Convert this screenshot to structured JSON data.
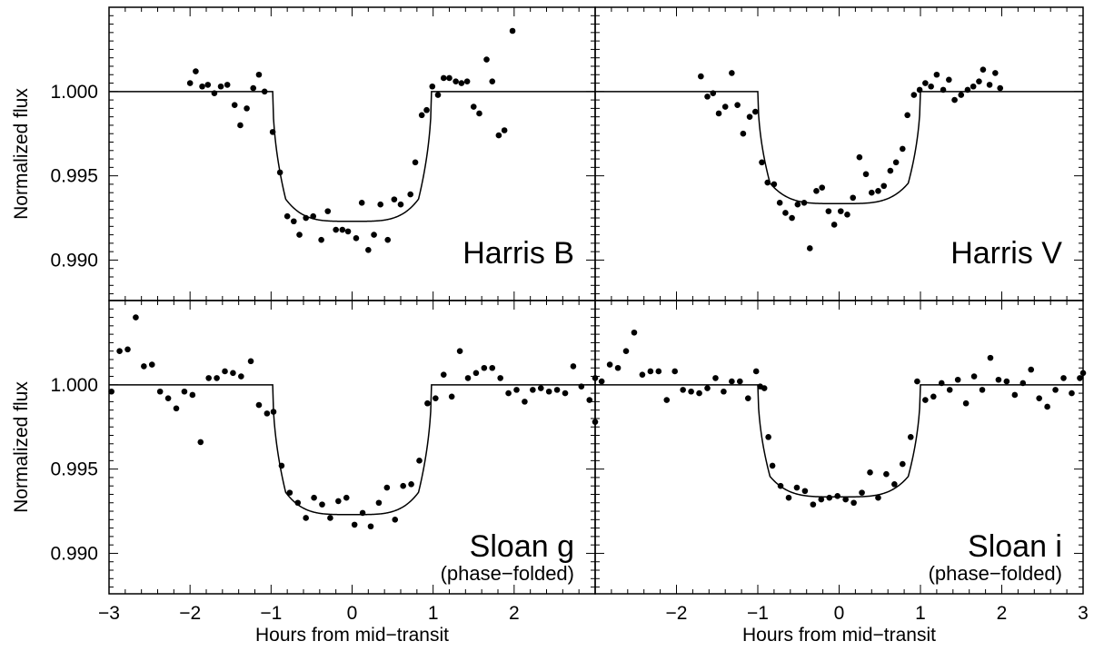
{
  "chart_data": [
    {
      "type": "scatter",
      "band_label": "Harris B",
      "note": "",
      "xlabel": "",
      "ylabel": "Normalized flux",
      "xlim": [
        -3,
        3
      ],
      "ylim": [
        0.9876,
        1.005
      ],
      "xticks": [],
      "yticks": [
        "1.000",
        "0.995",
        "0.990"
      ],
      "model": {
        "baseline": 1.0,
        "depth_center": 0.9923,
        "t_full": 0.82,
        "t_total": 0.98
      },
      "points": [
        [
          -2.0,
          1.0005
        ],
        [
          -1.93,
          1.0012
        ],
        [
          -1.85,
          1.0003
        ],
        [
          -1.78,
          1.0004
        ],
        [
          -1.7,
          0.9999
        ],
        [
          -1.62,
          1.0003
        ],
        [
          -1.54,
          1.0004
        ],
        [
          -1.45,
          0.9992
        ],
        [
          -1.38,
          0.998
        ],
        [
          -1.3,
          0.999
        ],
        [
          -1.22,
          1.0002
        ],
        [
          -1.15,
          1.001
        ],
        [
          -1.08,
          1.0
        ],
        [
          -0.98,
          0.9976
        ],
        [
          -0.89,
          0.9952
        ],
        [
          -0.8,
          0.9926
        ],
        [
          -0.72,
          0.9923
        ],
        [
          -0.65,
          0.9915
        ],
        [
          -0.57,
          0.9925
        ],
        [
          -0.48,
          0.9926
        ],
        [
          -0.38,
          0.9912
        ],
        [
          -0.3,
          0.9929
        ],
        [
          -0.2,
          0.9918
        ],
        [
          -0.12,
          0.9918
        ],
        [
          -0.05,
          0.9917
        ],
        [
          0.05,
          0.9913
        ],
        [
          0.12,
          0.9934
        ],
        [
          0.2,
          0.9906
        ],
        [
          0.27,
          0.9915
        ],
        [
          0.35,
          0.9933
        ],
        [
          0.44,
          0.9912
        ],
        [
          0.52,
          0.9936
        ],
        [
          0.6,
          0.9933
        ],
        [
          0.72,
          0.9939
        ],
        [
          0.78,
          0.9958
        ],
        [
          0.86,
          0.9986
        ],
        [
          0.92,
          0.9989
        ],
        [
          0.99,
          1.0003
        ],
        [
          1.06,
          0.9998
        ],
        [
          1.13,
          1.0008
        ],
        [
          1.2,
          1.0008
        ],
        [
          1.28,
          1.0006
        ],
        [
          1.35,
          1.0005
        ],
        [
          1.42,
          1.0006
        ],
        [
          1.5,
          0.9991
        ],
        [
          1.57,
          0.9987
        ],
        [
          1.66,
          1.0019
        ],
        [
          1.73,
          1.0006
        ],
        [
          1.81,
          0.9974
        ],
        [
          1.88,
          0.9977
        ],
        [
          1.98,
          1.0036
        ]
      ]
    },
    {
      "type": "scatter",
      "band_label": "Harris V",
      "note": "",
      "xlabel": "",
      "ylabel": "",
      "xlim": [
        -3,
        3
      ],
      "ylim": [
        0.9876,
        1.005
      ],
      "xticks": [],
      "yticks": [],
      "model": {
        "baseline": 1.0,
        "depth_center": 0.99335,
        "t_full": 0.85,
        "t_total": 1.0
      },
      "points": [
        [
          -1.7,
          1.0009
        ],
        [
          -1.62,
          0.9997
        ],
        [
          -1.55,
          0.9999
        ],
        [
          -1.48,
          0.9987
        ],
        [
          -1.4,
          0.9991
        ],
        [
          -1.32,
          1.0011
        ],
        [
          -1.25,
          0.9992
        ],
        [
          -1.18,
          0.9975
        ],
        [
          -1.1,
          0.9985
        ],
        [
          -1.03,
          0.9988
        ],
        [
          -0.95,
          0.9958
        ],
        [
          -0.88,
          0.9946
        ],
        [
          -0.8,
          0.9945
        ],
        [
          -0.73,
          0.9934
        ],
        [
          -0.66,
          0.9928
        ],
        [
          -0.58,
          0.9925
        ],
        [
          -0.51,
          0.9933
        ],
        [
          -0.43,
          0.9934
        ],
        [
          -0.36,
          0.9907
        ],
        [
          -0.28,
          0.9941
        ],
        [
          -0.21,
          0.9943
        ],
        [
          -0.13,
          0.9929
        ],
        [
          -0.06,
          0.9921
        ],
        [
          0.02,
          0.9929
        ],
        [
          0.1,
          0.9927
        ],
        [
          0.17,
          0.9937
        ],
        [
          0.25,
          0.9961
        ],
        [
          0.33,
          0.9951
        ],
        [
          0.4,
          0.994
        ],
        [
          0.48,
          0.9941
        ],
        [
          0.55,
          0.9944
        ],
        [
          0.63,
          0.9953
        ],
        [
          0.7,
          0.9958
        ],
        [
          0.78,
          0.9966
        ],
        [
          0.84,
          0.9986
        ],
        [
          0.92,
          0.9998
        ],
        [
          0.99,
          1.0001
        ],
        [
          1.06,
          1.0005
        ],
        [
          1.13,
          1.0003
        ],
        [
          1.2,
          1.001
        ],
        [
          1.28,
          1.0001
        ],
        [
          1.35,
          1.0007
        ],
        [
          1.42,
          0.9995
        ],
        [
          1.5,
          0.9998
        ],
        [
          1.58,
          1.0001
        ],
        [
          1.65,
          1.0003
        ],
        [
          1.72,
          1.0006
        ],
        [
          1.77,
          1.0013
        ],
        [
          1.85,
          1.0004
        ],
        [
          1.92,
          1.0011
        ],
        [
          1.98,
          1.0002
        ]
      ]
    },
    {
      "type": "scatter",
      "band_label": "Sloan g",
      "note": "(phase−folded)",
      "xlabel": "Hours from mid−transit",
      "ylabel": "Normalized flux",
      "xlim": [
        -3,
        3
      ],
      "ylim": [
        0.9876,
        1.005
      ],
      "xticks": [
        "−3",
        "−2",
        "−1",
        "0",
        "1",
        "2"
      ],
      "yticks": [
        "1.000",
        "0.995",
        "0.990"
      ],
      "model": {
        "baseline": 1.0,
        "depth_center": 0.9923,
        "t_full": 0.82,
        "t_total": 0.98
      },
      "points": [
        [
          -2.97,
          0.9996
        ],
        [
          -2.87,
          1.002
        ],
        [
          -2.77,
          1.0021
        ],
        [
          -2.67,
          1.004
        ],
        [
          -2.57,
          1.0011
        ],
        [
          -2.47,
          1.0012
        ],
        [
          -2.37,
          0.9996
        ],
        [
          -2.27,
          0.9992
        ],
        [
          -2.17,
          0.9986
        ],
        [
          -2.07,
          0.9996
        ],
        [
          -1.97,
          0.9994
        ],
        [
          -1.87,
          0.9966
        ],
        [
          -1.77,
          1.0004
        ],
        [
          -1.67,
          1.0004
        ],
        [
          -1.57,
          1.0008
        ],
        [
          -1.47,
          1.0007
        ],
        [
          -1.37,
          1.0005
        ],
        [
          -1.25,
          1.0014
        ],
        [
          -1.15,
          0.9988
        ],
        [
          -1.05,
          0.9983
        ],
        [
          -0.97,
          0.9984
        ],
        [
          -0.87,
          0.9952
        ],
        [
          -0.77,
          0.9936
        ],
        [
          -0.67,
          0.993
        ],
        [
          -0.57,
          0.9921
        ],
        [
          -0.47,
          0.9933
        ],
        [
          -0.37,
          0.9929
        ],
        [
          -0.27,
          0.9921
        ],
        [
          -0.17,
          0.9931
        ],
        [
          -0.07,
          0.9933
        ],
        [
          0.03,
          0.9917
        ],
        [
          0.13,
          0.9924
        ],
        [
          0.23,
          0.9916
        ],
        [
          0.33,
          0.993
        ],
        [
          0.43,
          0.9939
        ],
        [
          0.53,
          0.992
        ],
        [
          0.63,
          0.994
        ],
        [
          0.73,
          0.9941
        ],
        [
          0.83,
          0.9955
        ],
        [
          0.93,
          0.9989
        ],
        [
          1.03,
          0.9992
        ],
        [
          1.13,
          1.0006
        ],
        [
          1.23,
          0.9993
        ],
        [
          1.33,
          1.002
        ],
        [
          1.43,
          1.0004
        ],
        [
          1.53,
          1.0007
        ],
        [
          1.63,
          1.001
        ],
        [
          1.73,
          1.001
        ],
        [
          1.83,
          1.0004
        ],
        [
          1.93,
          0.9995
        ],
        [
          2.03,
          0.9997
        ],
        [
          2.13,
          0.999
        ],
        [
          2.23,
          0.9997
        ],
        [
          2.33,
          0.9998
        ],
        [
          2.43,
          0.9996
        ],
        [
          2.53,
          0.9997
        ],
        [
          2.63,
          0.9995
        ],
        [
          2.73,
          1.0011
        ],
        [
          2.83,
          0.9999
        ],
        [
          2.93,
          0.9991
        ],
        [
          3.03,
          0.9978
        ]
      ]
    },
    {
      "type": "scatter",
      "band_label": "Sloan i",
      "note": "(phase−folded)",
      "xlabel": "Hours from mid−transit",
      "ylabel": "",
      "xlim": [
        -3,
        3
      ],
      "ylim": [
        0.9876,
        1.005
      ],
      "xticks": [
        "−2",
        "−1",
        "0",
        "1",
        "2",
        "3"
      ],
      "yticks": [],
      "model": {
        "baseline": 1.0,
        "depth_center": 0.99335,
        "t_full": 0.85,
        "t_total": 1.0
      },
      "points": [
        [
          -3.0,
          1.0004
        ],
        [
          -2.92,
          1.0002
        ],
        [
          -2.82,
          1.0012
        ],
        [
          -2.72,
          1.001
        ],
        [
          -2.62,
          1.002
        ],
        [
          -2.52,
          1.0031
        ],
        [
          -2.42,
          1.0006
        ],
        [
          -2.32,
          1.0008
        ],
        [
          -2.22,
          1.0008
        ],
        [
          -2.12,
          0.9991
        ],
        [
          -2.02,
          1.0008
        ],
        [
          -1.92,
          0.9997
        ],
        [
          -1.82,
          0.9996
        ],
        [
          -1.72,
          0.9995
        ],
        [
          -1.62,
          0.9998
        ],
        [
          -1.52,
          1.0004
        ],
        [
          -1.42,
          0.9996
        ],
        [
          -1.32,
          1.0002
        ],
        [
          -1.22,
          1.0002
        ],
        [
          -1.12,
          0.9992
        ],
        [
          -1.02,
          1.0008
        ],
        [
          -0.97,
          0.9999
        ],
        [
          -0.92,
          0.9998
        ],
        [
          -0.87,
          0.9969
        ],
        [
          -0.82,
          0.9952
        ],
        [
          -0.72,
          0.994
        ],
        [
          -0.62,
          0.9933
        ],
        [
          -0.52,
          0.9939
        ],
        [
          -0.42,
          0.9937
        ],
        [
          -0.32,
          0.9929
        ],
        [
          -0.22,
          0.9932
        ],
        [
          -0.12,
          0.9933
        ],
        [
          -0.02,
          0.9934
        ],
        [
          0.08,
          0.9932
        ],
        [
          0.18,
          0.993
        ],
        [
          0.28,
          0.9936
        ],
        [
          0.38,
          0.9948
        ],
        [
          0.48,
          0.9933
        ],
        [
          0.58,
          0.9947
        ],
        [
          0.68,
          0.9941
        ],
        [
          0.78,
          0.9953
        ],
        [
          0.88,
          0.9969
        ],
        [
          0.96,
          1.0002
        ],
        [
          1.06,
          0.9991
        ],
        [
          1.16,
          0.9993
        ],
        [
          1.26,
          1.0001
        ],
        [
          1.36,
          0.9997
        ],
        [
          1.46,
          1.0003
        ],
        [
          1.56,
          0.9989
        ],
        [
          1.66,
          1.0005
        ],
        [
          1.76,
          0.9997
        ],
        [
          1.86,
          1.0016
        ],
        [
          1.96,
          1.0003
        ],
        [
          2.06,
          1.0002
        ],
        [
          2.16,
          0.9994
        ],
        [
          2.26,
          1.0001
        ],
        [
          2.36,
          1.0009
        ],
        [
          2.46,
          0.9992
        ],
        [
          2.56,
          0.9987
        ],
        [
          2.66,
          0.9997
        ],
        [
          2.76,
          1.0004
        ],
        [
          2.86,
          0.9995
        ],
        [
          2.96,
          1.0004
        ],
        [
          3.02,
          1.0007
        ]
      ]
    }
  ]
}
